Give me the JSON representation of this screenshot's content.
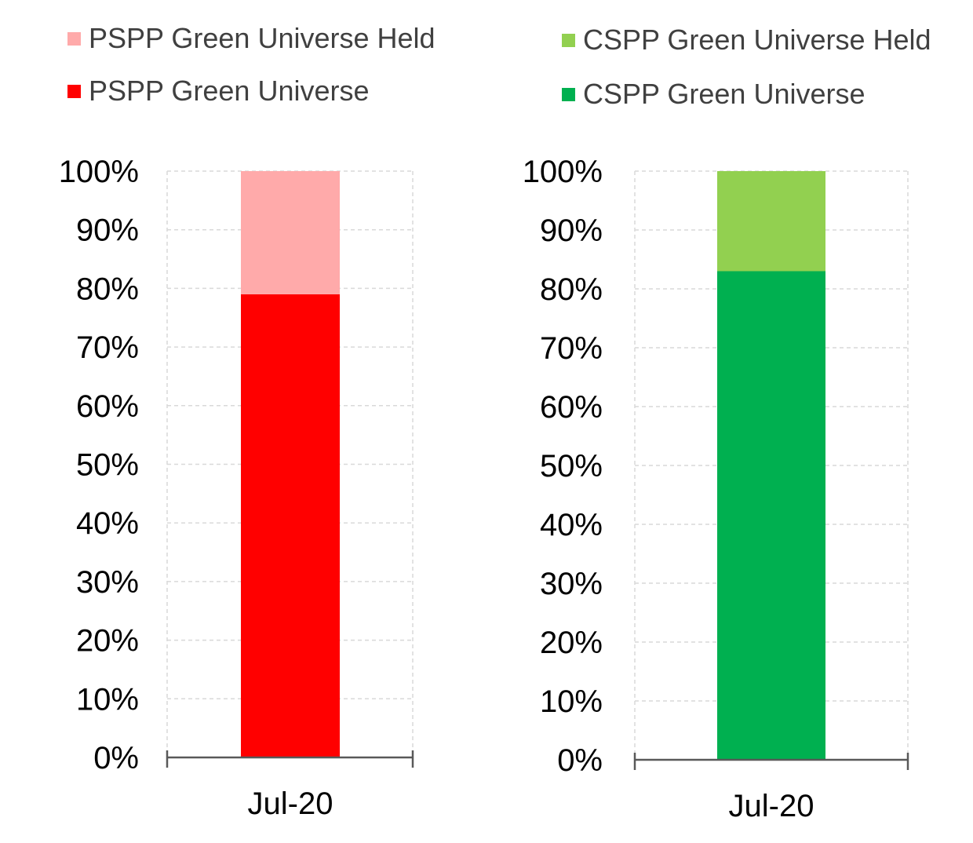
{
  "chart_data": [
    {
      "type": "bar",
      "stacked": true,
      "categories": [
        "Jul-20"
      ],
      "series": [
        {
          "name": "PSPP Green Universe",
          "values": [
            79
          ],
          "color": "#ff0000"
        },
        {
          "name": "PSPP Green Universe Held",
          "values": [
            21
          ],
          "color": "#ffaaaa"
        }
      ],
      "legend_order": [
        "PSPP Green Universe Held",
        "PSPP Green Universe"
      ],
      "ylim": [
        0,
        100
      ],
      "yticks": [
        "0%",
        "10%",
        "20%",
        "30%",
        "40%",
        "50%",
        "60%",
        "70%",
        "80%",
        "90%",
        "100%"
      ],
      "grid": true,
      "legend_position": "top"
    },
    {
      "type": "bar",
      "stacked": true,
      "categories": [
        "Jul-20"
      ],
      "series": [
        {
          "name": "CSPP Green Universe",
          "values": [
            83
          ],
          "color": "#00b050"
        },
        {
          "name": "CSPP Green Universe Held",
          "values": [
            17
          ],
          "color": "#92d050"
        }
      ],
      "legend_order": [
        "CSPP Green Universe Held",
        "CSPP Green Universe"
      ],
      "ylim": [
        0,
        100
      ],
      "yticks": [
        "0%",
        "10%",
        "20%",
        "30%",
        "40%",
        "50%",
        "60%",
        "70%",
        "80%",
        "90%",
        "100%"
      ],
      "grid": true,
      "legend_position": "top"
    }
  ]
}
